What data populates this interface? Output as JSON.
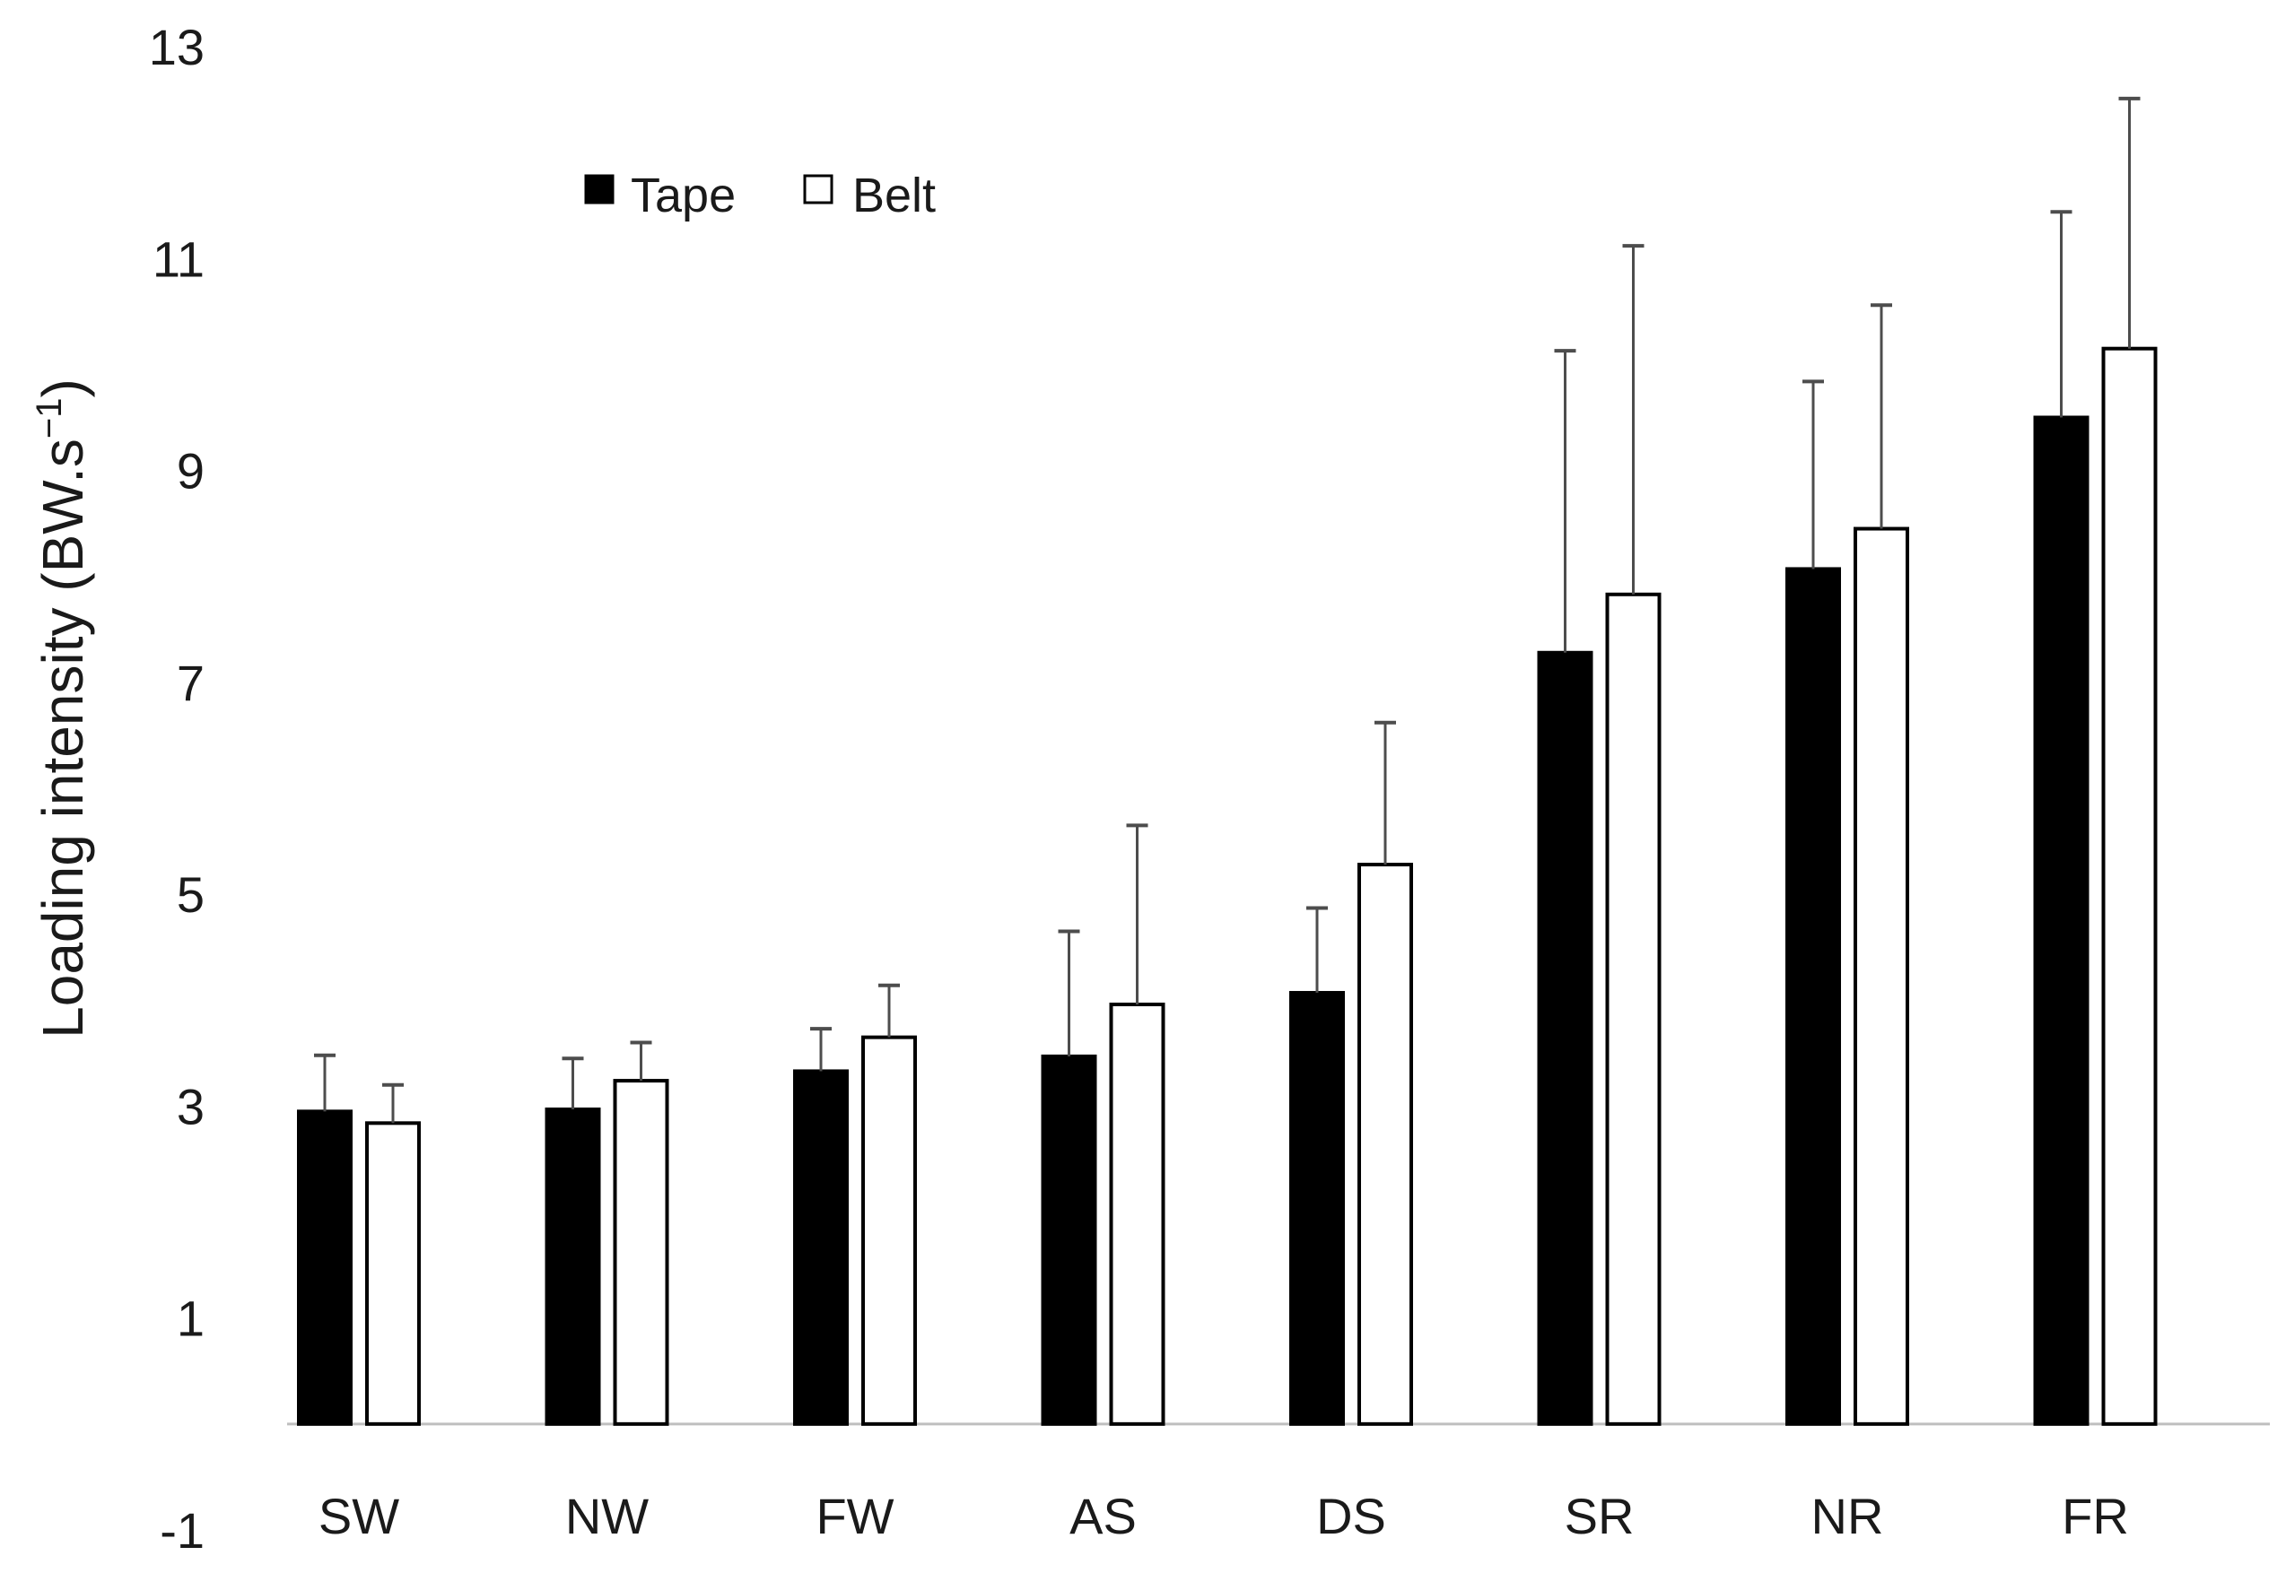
{
  "chart_data": {
    "type": "bar",
    "title": "",
    "xlabel": "",
    "ylabel": "Loading intensity (BW.s",
    "ylabel_superscript": "−1",
    "ylabel_close": ")",
    "ylim": [
      -1,
      13
    ],
    "yticks": [
      -1,
      1,
      3,
      5,
      7,
      9,
      11,
      13
    ],
    "baseline": 0,
    "grid": false,
    "legend_position": "top-left",
    "categories": [
      "SW",
      "NW",
      "FW",
      "AS",
      "DS",
      "SR",
      "NR",
      "FR"
    ],
    "series": [
      {
        "name": "Tape",
        "fill": "#000000",
        "values": [
          2.95,
          2.97,
          3.33,
          3.47,
          4.07,
          7.28,
          8.07,
          9.5
        ],
        "errors": [
          0.53,
          0.48,
          0.4,
          1.18,
          0.8,
          2.85,
          1.77,
          1.94
        ]
      },
      {
        "name": "Belt",
        "fill": "#ffffff",
        "values": [
          2.84,
          3.24,
          3.65,
          3.96,
          5.28,
          7.83,
          8.45,
          10.15
        ],
        "errors": [
          0.36,
          0.36,
          0.49,
          1.69,
          1.34,
          3.29,
          2.11,
          2.36
        ]
      }
    ],
    "colors": {
      "bar_stroke": "#000000",
      "error_bar": "#4d4d4d",
      "axis_line": "#bfbfbf",
      "text": "#1a1a1a"
    }
  }
}
